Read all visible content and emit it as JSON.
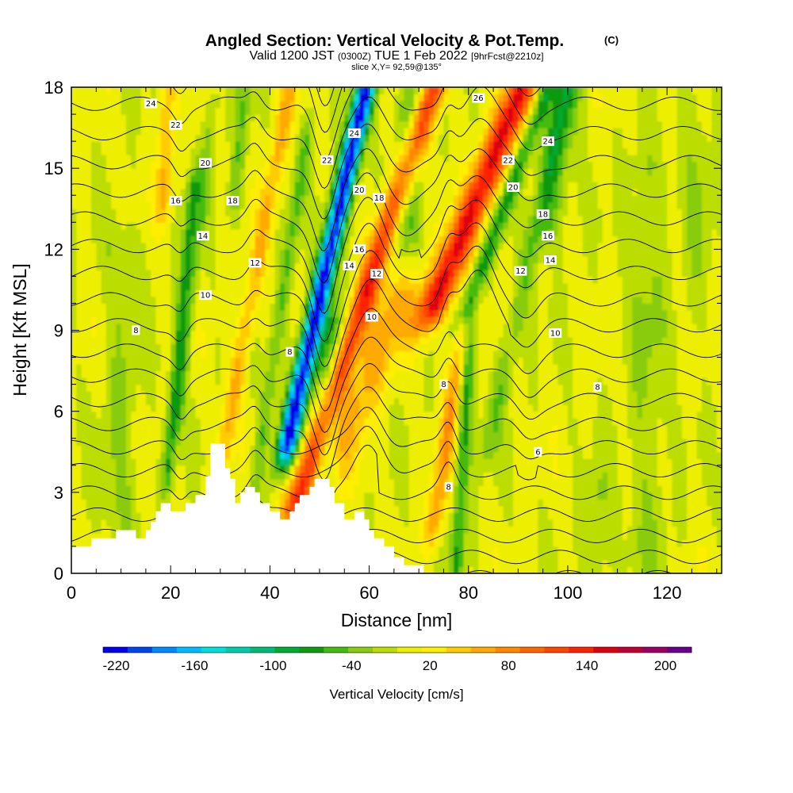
{
  "chart_data": {
    "type": "heatmap",
    "title": "Angled Section: Vertical Velocity & Pot.Temp.",
    "title_unit": "(C)",
    "subtitle": {
      "part1": "Valid 1200 JST",
      "part2": "(0300Z)",
      "part3": "TUE 1 Feb 2022",
      "part4": "[9hrFcst@2210z]"
    },
    "slice_label": "slice X,Y= 92,59@135°",
    "xlabel": "Distance [nm]",
    "ylabel": "Height [Kft MSL]",
    "xlim": [
      0,
      131
    ],
    "ylim": [
      0,
      18
    ],
    "x_ticks": [
      {
        "value": 0,
        "label": "0"
      },
      {
        "value": 20,
        "label": "20"
      },
      {
        "value": 40,
        "label": "40"
      },
      {
        "value": 60,
        "label": "60"
      },
      {
        "value": 80,
        "label": "80"
      },
      {
        "value": 100,
        "label": "100"
      },
      {
        "value": 120,
        "label": "120"
      }
    ],
    "y_ticks": [
      {
        "value": 0,
        "label": "0"
      },
      {
        "value": 3,
        "label": "3"
      },
      {
        "value": 6,
        "label": "6"
      },
      {
        "value": 9,
        "label": "9"
      },
      {
        "value": 12,
        "label": "12"
      },
      {
        "value": 15,
        "label": "15"
      },
      {
        "value": 18,
        "label": "18"
      }
    ],
    "colorbar": {
      "label": "Vertical Velocity [cm/s]",
      "min": -230,
      "max": 220,
      "step": 20,
      "colors": [
        "#0000ee",
        "#0044ee",
        "#0088ff",
        "#00bbff",
        "#00dddd",
        "#00ccaa",
        "#00bb77",
        "#00aa33",
        "#119911",
        "#44bb11",
        "#88cc11",
        "#bbdd00",
        "#eeee00",
        "#ffee00",
        "#ffcc00",
        "#ffaa00",
        "#ff8800",
        "#ff6600",
        "#ff4400",
        "#ff2200",
        "#dd0011",
        "#bb0033",
        "#990066",
        "#660088"
      ],
      "tick_labels": [
        {
          "value": -220,
          "label": "-220"
        },
        {
          "value": -160,
          "label": "-160"
        },
        {
          "value": -100,
          "label": "-100"
        },
        {
          "value": -40,
          "label": "-40"
        },
        {
          "value": 20,
          "label": "20"
        },
        {
          "value": 80,
          "label": "80"
        },
        {
          "value": 140,
          "label": "140"
        },
        {
          "value": 200,
          "label": "200"
        }
      ]
    },
    "background_w": 15,
    "w_features": [
      {
        "x": 51.5,
        "y0": 18,
        "y1": 5,
        "lean": 1.2,
        "width": 2.0,
        "amp": -240
      },
      {
        "x": 51.5,
        "y0": 9,
        "y1": 3,
        "lean": 0.5,
        "width": 3.2,
        "amp": -70
      },
      {
        "x": 59.5,
        "y0": 18,
        "y1": 3,
        "lean": 1.8,
        "width": 2.6,
        "amp": 150
      },
      {
        "x": 58,
        "y0": 10,
        "y1": 3,
        "lean": 2.2,
        "width": 4.5,
        "amp": 60
      },
      {
        "x": 82,
        "y0": 18,
        "y1": 10,
        "lean": 2.2,
        "width": 3.2,
        "amp": 160
      },
      {
        "x": 76,
        "y0": 9,
        "y1": 2,
        "lean": 0.8,
        "width": 1.8,
        "amp": 70
      },
      {
        "x": 79,
        "y0": 9,
        "y1": 0.5,
        "lean": 0.3,
        "width": 1.4,
        "amp": -70
      },
      {
        "x": 68,
        "y0": 18,
        "y1": 13,
        "lean": 0.5,
        "width": 3.0,
        "amp": -60
      },
      {
        "x": 88,
        "y0": 18,
        "y1": 10,
        "lean": 2.0,
        "width": 1.8,
        "amp": -70
      },
      {
        "x": 92,
        "y0": 18,
        "y1": 5,
        "lean": 1.2,
        "width": 2.0,
        "amp": -40
      },
      {
        "x": 98,
        "y0": 18,
        "y1": 13,
        "lean": 0.8,
        "width": 3.0,
        "amp": -50
      },
      {
        "x": 37,
        "y0": 18,
        "y1": 4,
        "lean": 1.0,
        "width": 1.8,
        "amp": 60
      },
      {
        "x": 42,
        "y0": 16,
        "y1": 3,
        "lean": 0.8,
        "width": 1.5,
        "amp": -45
      },
      {
        "x": 22,
        "y0": 14,
        "y1": 4,
        "lean": 0.5,
        "width": 1.3,
        "amp": -70
      },
      {
        "x": 25,
        "y0": 17,
        "y1": 6,
        "lean": 0.6,
        "width": 1.2,
        "amp": -35
      },
      {
        "x": 19,
        "y0": 18,
        "y1": 14,
        "lean": 0.2,
        "width": 1.5,
        "amp": 60
      },
      {
        "x": 34,
        "y0": 18,
        "y1": 14,
        "lean": 0.5,
        "width": 1.5,
        "amp": -40
      },
      {
        "x": 10,
        "y0": 12,
        "y1": 0.5,
        "lean": 0,
        "width": 3.5,
        "amp": -25
      },
      {
        "x": 116,
        "y0": 15,
        "y1": 1,
        "lean": 0,
        "width": 4.0,
        "amp": -25
      },
      {
        "x": 106,
        "y0": 3,
        "y1": 0.3,
        "lean": 0,
        "width": 2.5,
        "amp": -25
      },
      {
        "x": 126,
        "y0": 18,
        "y1": 10,
        "lean": 0,
        "width": 3.0,
        "amp": -20
      }
    ],
    "terrain": [
      [
        0,
        1
      ],
      [
        4,
        1
      ],
      [
        4,
        1.3
      ],
      [
        9,
        1.3
      ],
      [
        9,
        1.6
      ],
      [
        13,
        1.6
      ],
      [
        13,
        1.3
      ],
      [
        15,
        1.3
      ],
      [
        15,
        1.6
      ],
      [
        16,
        1.6
      ],
      [
        16,
        1.9
      ],
      [
        17,
        1.9
      ],
      [
        17,
        2.3
      ],
      [
        18,
        2.3
      ],
      [
        18,
        2.6
      ],
      [
        20,
        2.6
      ],
      [
        20,
        2.3
      ],
      [
        23,
        2.3
      ],
      [
        23,
        2.6
      ],
      [
        25,
        2.6
      ],
      [
        25,
        2.9
      ],
      [
        27,
        2.9
      ],
      [
        27,
        3.6
      ],
      [
        28,
        3.6
      ],
      [
        28,
        4.8
      ],
      [
        31,
        4.8
      ],
      [
        31,
        3.9
      ],
      [
        32,
        3.9
      ],
      [
        32,
        3.5
      ],
      [
        33,
        3.5
      ],
      [
        33,
        2.6
      ],
      [
        34,
        2.6
      ],
      [
        34,
        3.0
      ],
      [
        35,
        3.0
      ],
      [
        35,
        3.2
      ],
      [
        37,
        3.2
      ],
      [
        37,
        3.0
      ],
      [
        38,
        3.0
      ],
      [
        38,
        2.6
      ],
      [
        40,
        2.6
      ],
      [
        40,
        2.3
      ],
      [
        42,
        2.3
      ],
      [
        42,
        2.0
      ],
      [
        44,
        2.0
      ],
      [
        44,
        2.3
      ],
      [
        45,
        2.3
      ],
      [
        45,
        2.6
      ],
      [
        46,
        2.6
      ],
      [
        46,
        2.9
      ],
      [
        48,
        2.9
      ],
      [
        48,
        3.2
      ],
      [
        49,
        3.2
      ],
      [
        49,
        3.5
      ],
      [
        52,
        3.5
      ],
      [
        52,
        3.2
      ],
      [
        53,
        3.2
      ],
      [
        53,
        2.6
      ],
      [
        55,
        2.6
      ],
      [
        55,
        2.0
      ],
      [
        57,
        2.0
      ],
      [
        57,
        2.3
      ],
      [
        59,
        2.3
      ],
      [
        59,
        2.0
      ],
      [
        60,
        2.0
      ],
      [
        60,
        1.6
      ],
      [
        61,
        1.6
      ],
      [
        61,
        1.3
      ],
      [
        63,
        1.3
      ],
      [
        63,
        1.0
      ],
      [
        65,
        1.0
      ],
      [
        65,
        0.6
      ],
      [
        67,
        0.6
      ],
      [
        67,
        0.3
      ],
      [
        71,
        0.3
      ],
      [
        71,
        0
      ],
      [
        131,
        0
      ]
    ],
    "isotherms": [
      4,
      5,
      6,
      7,
      8,
      9,
      10,
      11,
      12,
      13,
      14,
      15,
      16,
      17,
      18,
      19,
      20,
      21,
      22,
      23,
      24,
      25,
      26,
      27,
      28
    ],
    "isotherm_base_height": -2.3,
    "isotherm_spacing": 0.69,
    "isotherm_ripples": [
      {
        "x": 51,
        "width": 3.0,
        "amp": -2.3,
        "ymin": 5
      },
      {
        "x": 60,
        "width": 4.0,
        "amp": 1.6,
        "ymin": 3
      },
      {
        "x": 82,
        "width": 4.5,
        "amp": 1.8,
        "ymin": 9
      },
      {
        "x": 76,
        "width": 2.0,
        "amp": 0.9,
        "ymin": 3
      },
      {
        "x": 37,
        "width": 2.0,
        "amp": 0.5,
        "ymin": 2
      },
      {
        "x": 22,
        "width": 1.8,
        "amp": -0.5,
        "ymin": 2
      },
      {
        "x": 92,
        "width": 3.0,
        "amp": -0.6,
        "ymin": 4
      },
      {
        "x": 68,
        "width": 4.0,
        "amp": -0.5,
        "ymin": 12
      }
    ],
    "contour_labels": [
      {
        "x": 16,
        "y": 17.4,
        "value": "24"
      },
      {
        "x": 21,
        "y": 16.6,
        "value": "22"
      },
      {
        "x": 27,
        "y": 15.2,
        "value": "20"
      },
      {
        "x": 21,
        "y": 13.8,
        "value": "16"
      },
      {
        "x": 32.5,
        "y": 13.8,
        "value": "18"
      },
      {
        "x": 26.5,
        "y": 12.5,
        "value": "14"
      },
      {
        "x": 37,
        "y": 11.5,
        "value": "12"
      },
      {
        "x": 27,
        "y": 10.3,
        "value": "10"
      },
      {
        "x": 13,
        "y": 9.0,
        "value": "8"
      },
      {
        "x": 44,
        "y": 8.2,
        "value": "8"
      },
      {
        "x": 51.5,
        "y": 15.3,
        "value": "22"
      },
      {
        "x": 57,
        "y": 16.3,
        "value": "24"
      },
      {
        "x": 58,
        "y": 14.2,
        "value": "20"
      },
      {
        "x": 62,
        "y": 13.9,
        "value": "18"
      },
      {
        "x": 58,
        "y": 12.0,
        "value": "16"
      },
      {
        "x": 56,
        "y": 11.4,
        "value": "14"
      },
      {
        "x": 61.5,
        "y": 11.1,
        "value": "12"
      },
      {
        "x": 60.5,
        "y": 9.5,
        "value": "10"
      },
      {
        "x": 82,
        "y": 17.6,
        "value": "26"
      },
      {
        "x": 88,
        "y": 15.3,
        "value": "22"
      },
      {
        "x": 89,
        "y": 14.3,
        "value": "20"
      },
      {
        "x": 96,
        "y": 16.0,
        "value": "24"
      },
      {
        "x": 95,
        "y": 13.3,
        "value": "18"
      },
      {
        "x": 96,
        "y": 12.5,
        "value": "16"
      },
      {
        "x": 96.5,
        "y": 11.6,
        "value": "14"
      },
      {
        "x": 90.5,
        "y": 11.2,
        "value": "12"
      },
      {
        "x": 97.5,
        "y": 8.9,
        "value": "10"
      },
      {
        "x": 75,
        "y": 7.0,
        "value": "8"
      },
      {
        "x": 106,
        "y": 6.9,
        "value": "8"
      },
      {
        "x": 94,
        "y": 4.5,
        "value": "6"
      },
      {
        "x": 76,
        "y": 3.2,
        "value": "8"
      }
    ]
  }
}
